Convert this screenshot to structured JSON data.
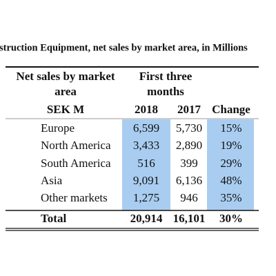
{
  "title": "struction Equipment, net sales by market area, in Millions",
  "table": {
    "header": {
      "label_lines": [
        "Net sales by market",
        "area"
      ],
      "period_lines": [
        "First three",
        "months"
      ],
      "unit": "SEK M",
      "columns": [
        "2018",
        "2017",
        "Change"
      ]
    },
    "rows": [
      [
        "Europe",
        "6,599",
        "5,730",
        "15%"
      ],
      [
        "North America",
        "3,433",
        "2,890",
        "19%"
      ],
      [
        "South America",
        "516",
        "399",
        "29%"
      ],
      [
        "Asia",
        "9,091",
        "6,136",
        "48%"
      ],
      [
        "Other markets",
        "1,275",
        "946",
        "35%"
      ]
    ],
    "total": [
      "Total",
      "20,914",
      "16,101",
      "30%"
    ]
  }
}
